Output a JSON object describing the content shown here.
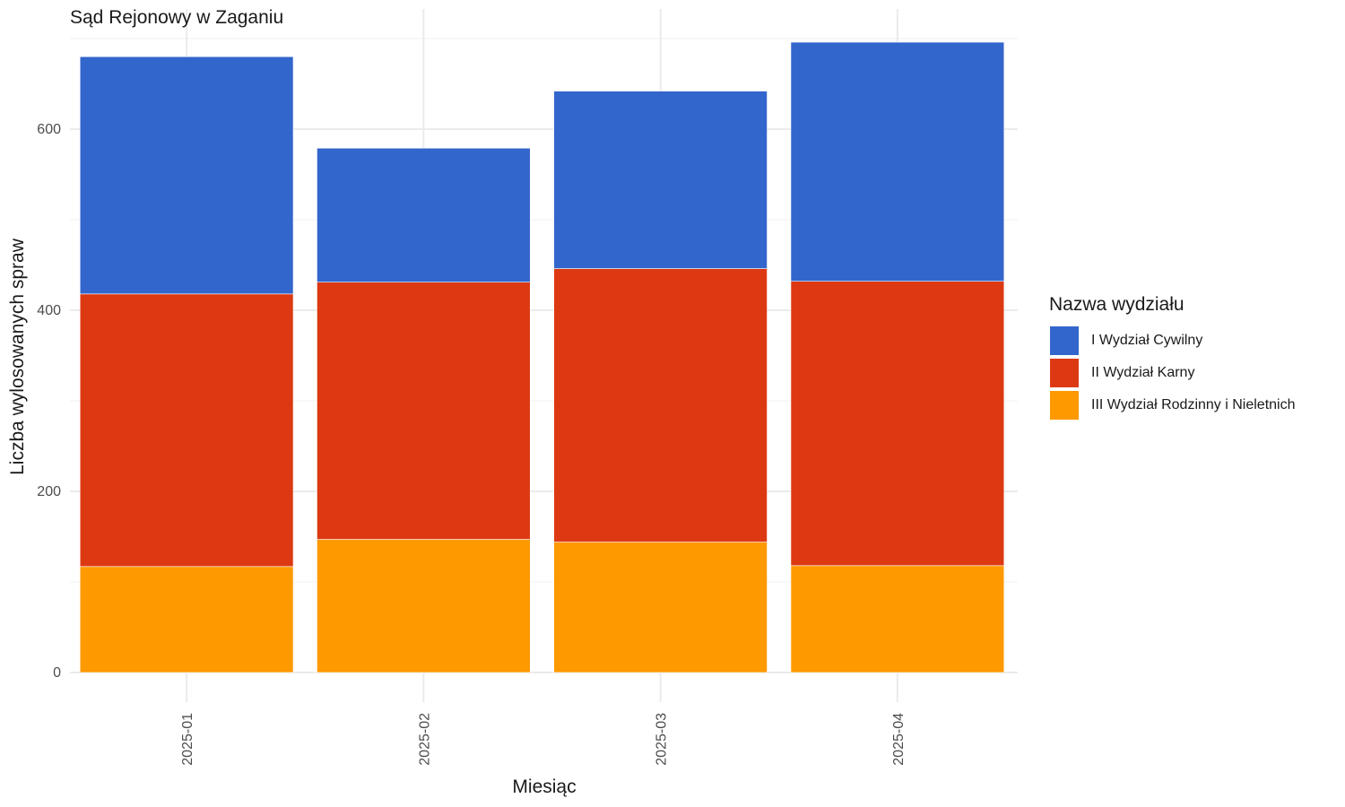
{
  "chart_data": {
    "type": "bar",
    "stacked": true,
    "title": "Sąd Rejonowy w Zaganiu",
    "xlabel": "Miesiąc",
    "ylabel": "Liczba wylosowanych spraw",
    "categories": [
      "2025-01",
      "2025-02",
      "2025-03",
      "2025-04"
    ],
    "ylim": [
      0,
      700
    ],
    "yticks": [
      0,
      200,
      400,
      600
    ],
    "grid": true,
    "legend_title": "Nazwa wydziału",
    "legend_position": "right",
    "series": [
      {
        "name": "III Wydział Rodzinny i Nieletnich",
        "color": "#FF9900",
        "values": [
          117,
          147,
          144,
          118
        ]
      },
      {
        "name": "II Wydział Karny",
        "color": "#DC3912",
        "values": [
          301,
          284,
          302,
          314
        ]
      },
      {
        "name": "I Wydział Cywilny",
        "color": "#3366CC",
        "values": [
          262,
          148,
          196,
          264
        ]
      }
    ],
    "legend_order": [
      "I Wydział Cywilny",
      "II Wydział Karny",
      "III Wydział Rodzinny i Nieletnich"
    ]
  }
}
